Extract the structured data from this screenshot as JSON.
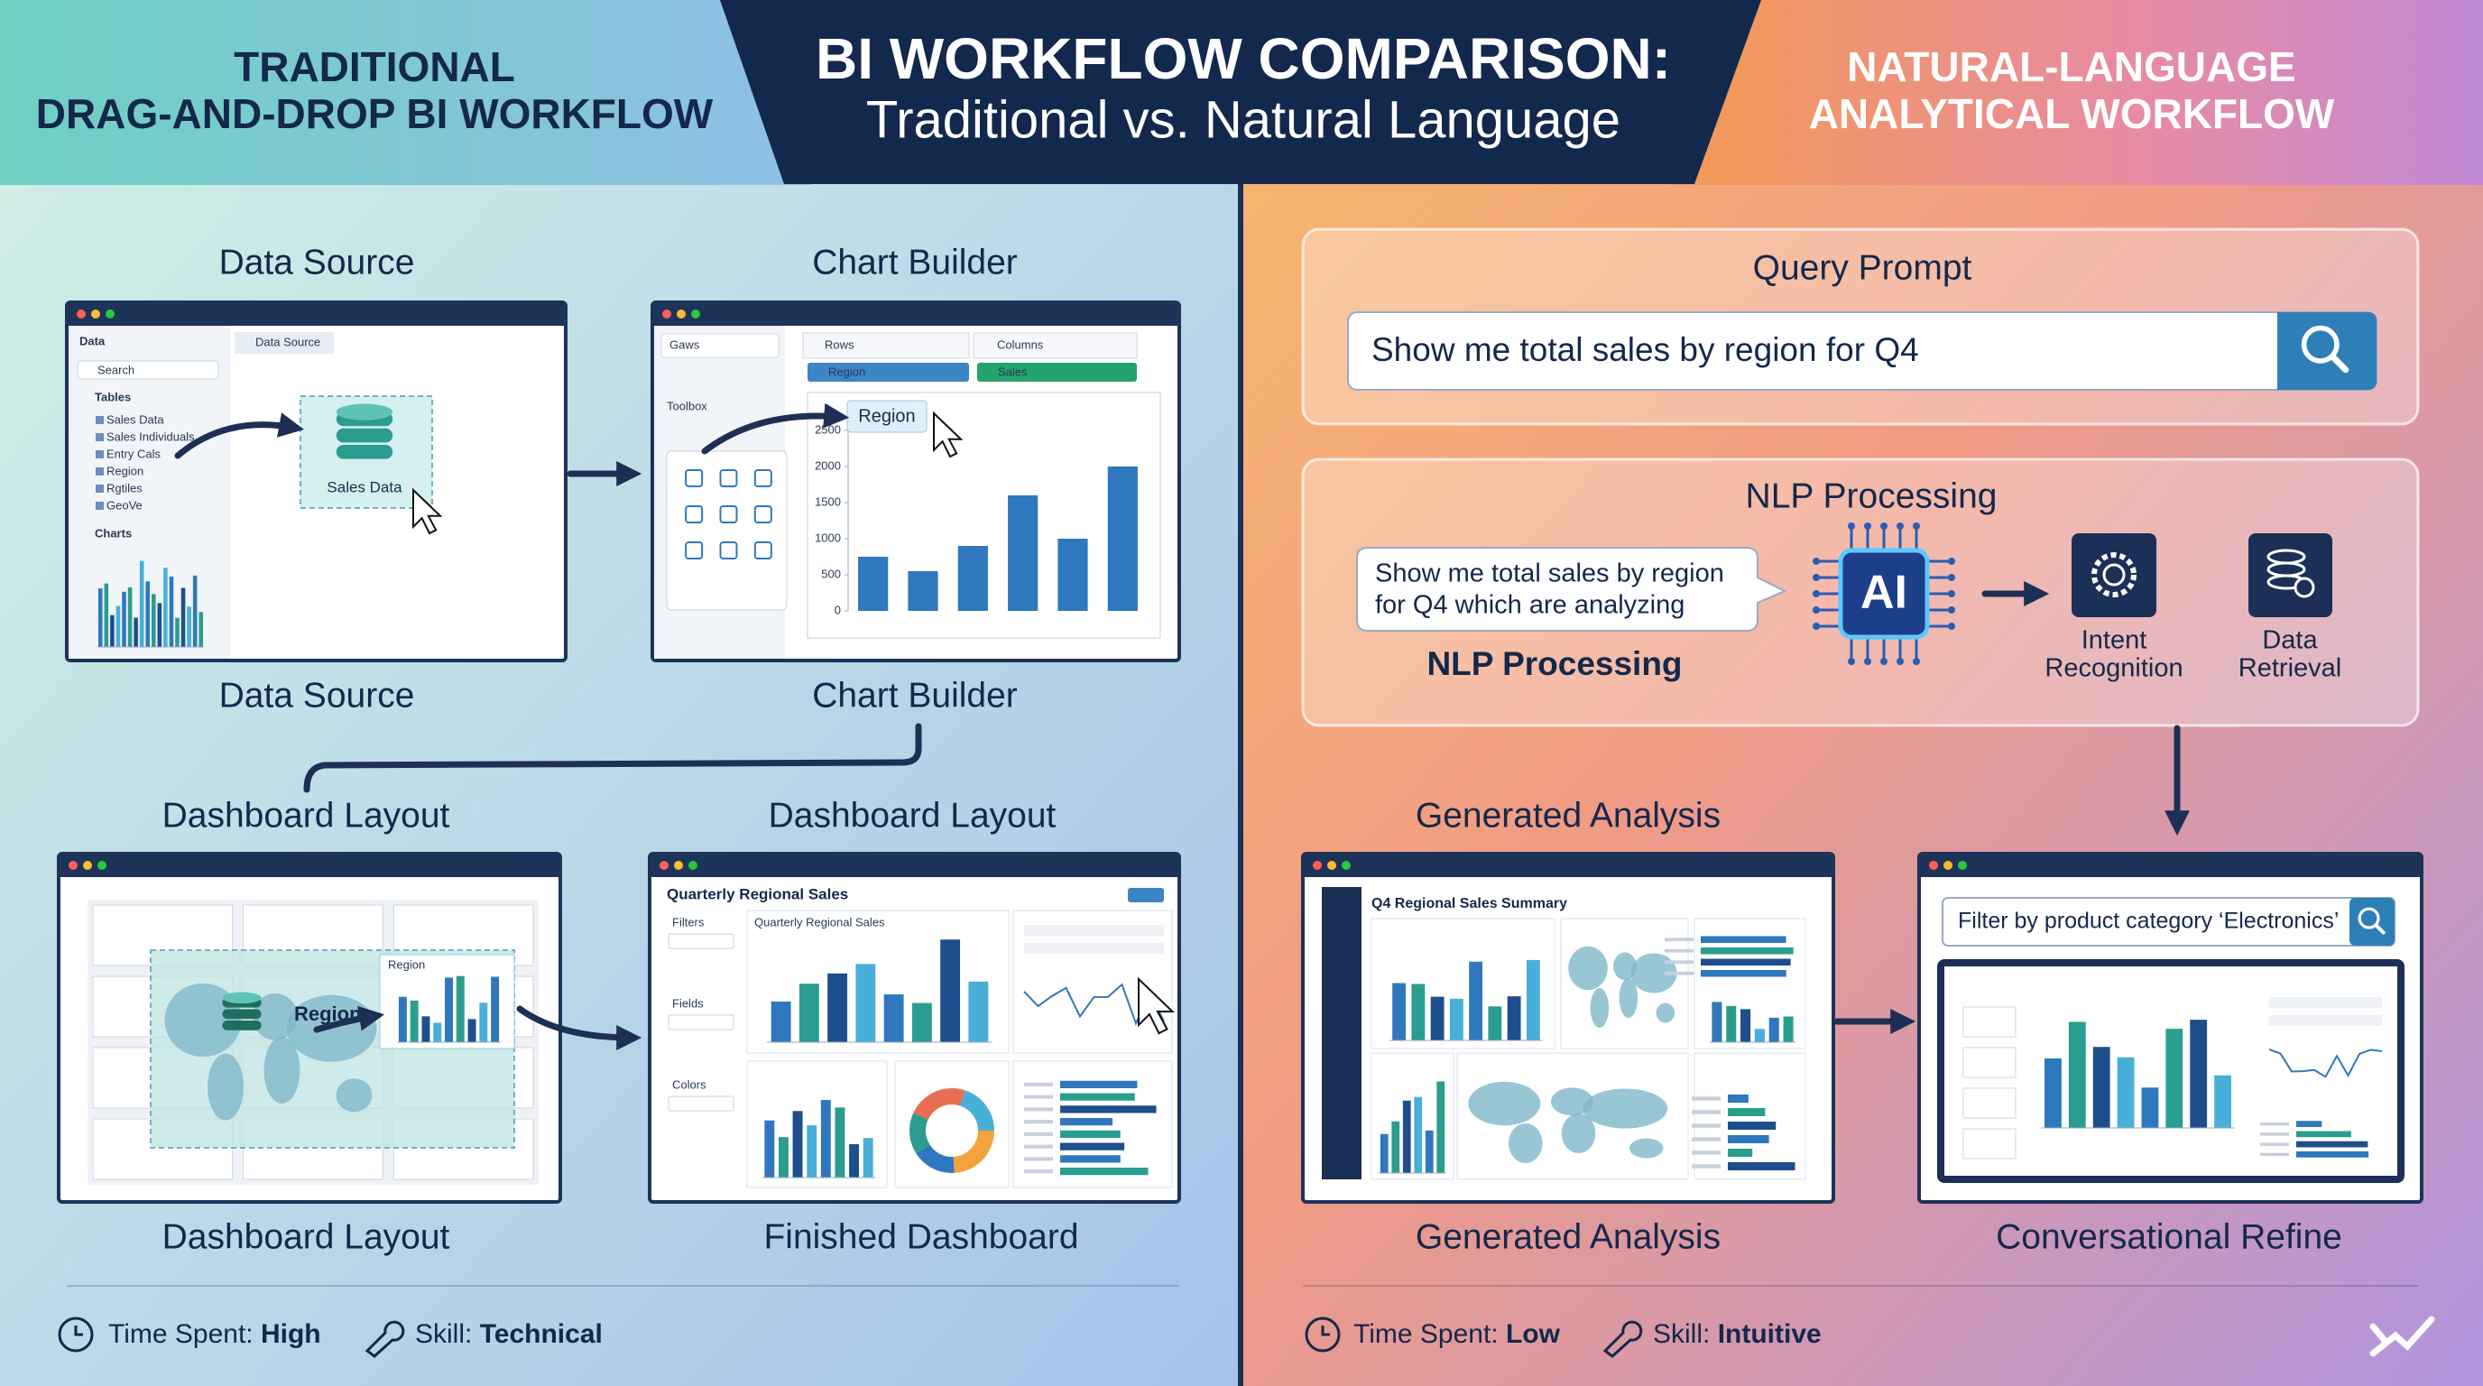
{
  "header": {
    "left_title": [
      "TRADITIONAL",
      "DRAG-AND-DROP BI WORKFLOW"
    ],
    "title": "BI WORKFLOW COMPARISON:",
    "subtitle": "Traditional vs. Natural Language",
    "right_title": [
      "NATURAL-LANGUAGE",
      "ANALYTICAL WORKFLOW"
    ]
  },
  "traditional": {
    "data_source": {
      "heading": "Data Source",
      "caption": "Data Source",
      "panel_title": "Data",
      "search": "Search",
      "tab": "Data Source",
      "tables_label": "Tables",
      "tables": [
        "Sales Data",
        "Sales Individuals",
        "Entry Cals",
        "Region",
        "Rgtiles",
        "GeoVe"
      ],
      "charts_label": "Charts",
      "drag_item": "Sales Data"
    },
    "chart_builder": {
      "heading": "Chart Builder",
      "caption": "Chart Builder",
      "shelf_label": "Gaws",
      "toolbox": "Toolbox",
      "rows": "Rows",
      "columns": "Columns",
      "rows_pill": "Region",
      "columns_pill": "Sales",
      "drag_item": "Region",
      "chart": {
        "type": "bar",
        "values": [
          750,
          550,
          900,
          1600,
          1000,
          2000
        ],
        "color": "#2f78bd",
        "ylim": [
          0,
          2500
        ],
        "yticks": [
          0,
          500,
          1000,
          1500,
          2000,
          2500
        ]
      }
    },
    "dashboard_layout": {
      "heading": "Dashboard Layout",
      "caption": "Dashboard Layout",
      "region_label": "Region",
      "mini_chart_label": "Region"
    },
    "finished_dashboard": {
      "heading": "Dashboard Layout",
      "caption": "Finished Dashboard",
      "title": "Quarterly Regional Sales",
      "chart_title": "Quarterly Regional Sales",
      "filters": [
        "Filters",
        "Fields",
        "Colors"
      ]
    },
    "footer": {
      "time_label": "Time Spent:",
      "time_value": "High",
      "skill_label": "Skill:",
      "skill_value": "Technical"
    }
  },
  "natural_language": {
    "query": {
      "heading": "Query Prompt",
      "input": "Show me total sales by region for Q4"
    },
    "nlp": {
      "heading": "NLP Processing",
      "bubble": [
        "Show me total sales by region",
        "for Q4 which are analyzing"
      ],
      "label": "NLP Processing",
      "chip": "AI",
      "steps": [
        [
          "Intent",
          "Recognition"
        ],
        [
          "Data",
          "Retrieval"
        ]
      ]
    },
    "generated_analysis": {
      "heading": "Generated Analysis",
      "caption": "Generated Analysis",
      "title": "Q4 Regional Sales Summary"
    },
    "conversational_refine": {
      "caption": "Conversational Refine",
      "input": "Filter by product category ‘Electronics’"
    },
    "footer": {
      "time_label": "Time Spent:",
      "time_value": "Low",
      "skill_label": "Skill:",
      "skill_value": "Intuitive"
    }
  }
}
